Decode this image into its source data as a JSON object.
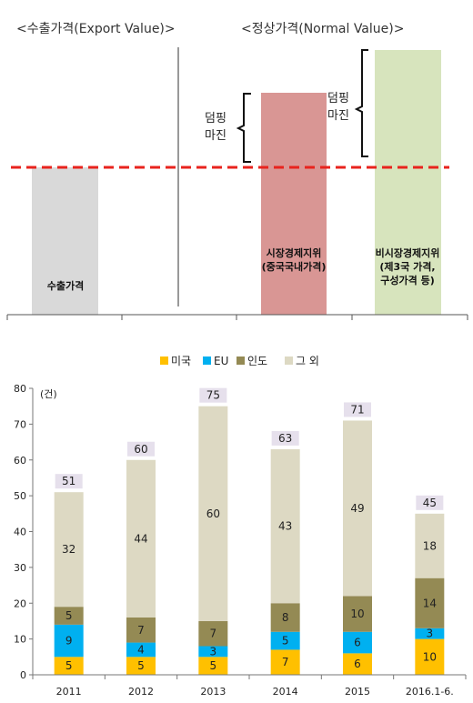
{
  "diagram": {
    "headers": {
      "export": "<수출가격(Export  Value)>",
      "normal": "<정상가격(Normal  Value)>"
    },
    "dumping_margin_lines": [
      "덤핑",
      "마진"
    ],
    "bars": [
      {
        "label_lines": [
          "수출가격"
        ],
        "color": "#d9d9d9"
      },
      {
        "label_lines": [
          "시장경제지위",
          "(중국국내가격)"
        ],
        "color": "#d99694"
      },
      {
        "label_lines": [
          "비시장경제지위",
          "(제3국 가격,",
          "구성가격 등)"
        ],
        "color": "#d7e4bd"
      }
    ],
    "dashed_line_color": "#e8231d"
  },
  "chart_data": {
    "type": "bar",
    "stacked": true,
    "unit": "(건)",
    "categories": [
      "2011",
      "2012",
      "2013",
      "2014",
      "2015",
      "2016.1-6."
    ],
    "series": [
      {
        "name": "미국",
        "color": "#ffc000",
        "values": [
          5,
          5,
          5,
          7,
          6,
          10
        ]
      },
      {
        "name": "EU",
        "color": "#00b0f0",
        "values": [
          9,
          4,
          3,
          5,
          6,
          3
        ]
      },
      {
        "name": "인도",
        "color": "#948a54",
        "values": [
          5,
          7,
          7,
          8,
          10,
          14
        ]
      },
      {
        "name": "그 외",
        "color": "#ddd9c3",
        "values": [
          32,
          44,
          60,
          43,
          49,
          18
        ]
      }
    ],
    "totals": [
      51,
      60,
      75,
      63,
      71,
      45
    ],
    "ylim": [
      0,
      80
    ],
    "yticks": [
      0,
      10,
      20,
      30,
      40,
      50,
      60,
      70,
      80
    ],
    "legend": "top",
    "total_box_color": "#e6e0ec"
  }
}
